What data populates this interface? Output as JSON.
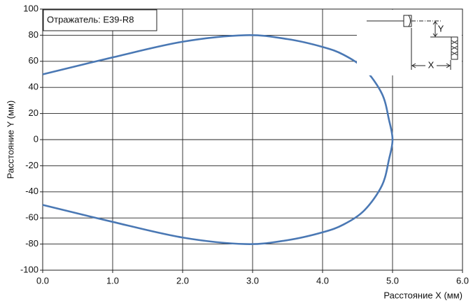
{
  "chart_data": {
    "type": "line",
    "annotation": "Отражатель: E39-R8",
    "inset_labels": [
      "Y",
      "X"
    ],
    "xlabel": "Расстояние X (мм)",
    "ylabel": "Расстояние Y (мм)",
    "xlim": [
      0,
      6
    ],
    "ylim": [
      -100,
      100
    ],
    "xticks": [
      {
        "value": 0,
        "label": "0.0"
      },
      {
        "value": 1,
        "label": "1.0"
      },
      {
        "value": 2,
        "label": "2.0"
      },
      {
        "value": 3,
        "label": "3.0"
      },
      {
        "value": 4,
        "label": "4.0"
      },
      {
        "value": 5,
        "label": "5.0"
      },
      {
        "value": 6,
        "label": "6.0"
      }
    ],
    "yticks": [
      100,
      80,
      60,
      40,
      20,
      0,
      -20,
      -40,
      -60,
      -80,
      -100
    ],
    "grid": true,
    "series": [
      {
        "color": "#4a78b4",
        "x": [
          0,
          1,
          2,
          2.9,
          3.5,
          4.0,
          4.3,
          4.6,
          4.85,
          4.95,
          5.0,
          4.95,
          4.85,
          4.6,
          4.3,
          4.0,
          3.5,
          2.9,
          2,
          1,
          0
        ],
        "values": [
          50,
          63,
          75,
          80,
          77,
          71,
          65,
          54,
          35,
          15,
          0,
          -15,
          -35,
          -54,
          -65,
          -71,
          -77,
          -80,
          -75,
          -63,
          -50
        ]
      }
    ]
  }
}
